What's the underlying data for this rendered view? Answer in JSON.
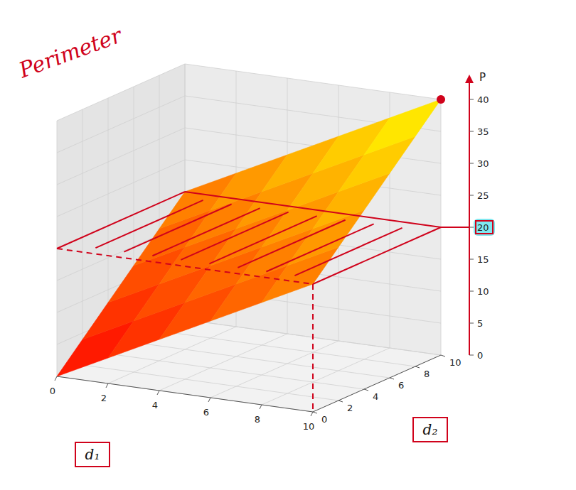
{
  "chart_data": {
    "type": "surface3d",
    "x_label": "d₁",
    "y_label": "d₂",
    "z_label": "P",
    "annotation": "Perimeter",
    "x": [
      0,
      2,
      4,
      6,
      8,
      10
    ],
    "y": [
      0,
      2,
      4,
      6,
      8,
      10
    ],
    "z": [
      [
        0,
        4,
        8,
        12,
        16,
        20
      ],
      [
        4,
        8,
        12,
        16,
        20,
        24
      ],
      [
        8,
        12,
        16,
        20,
        24,
        28
      ],
      [
        12,
        16,
        20,
        24,
        28,
        32
      ],
      [
        16,
        20,
        24,
        28,
        32,
        36
      ],
      [
        20,
        24,
        28,
        32,
        36,
        40
      ]
    ],
    "xlim": [
      0,
      10
    ],
    "ylim": [
      0,
      10
    ],
    "zlim": [
      0,
      40
    ],
    "xticks": [
      0,
      2,
      4,
      6,
      8,
      10
    ],
    "yticks": [
      0,
      2,
      4,
      6,
      8,
      10
    ],
    "zticks": [
      0,
      5,
      10,
      15,
      20,
      25,
      30,
      35,
      40
    ],
    "highlight_z": 20,
    "grid": true
  }
}
